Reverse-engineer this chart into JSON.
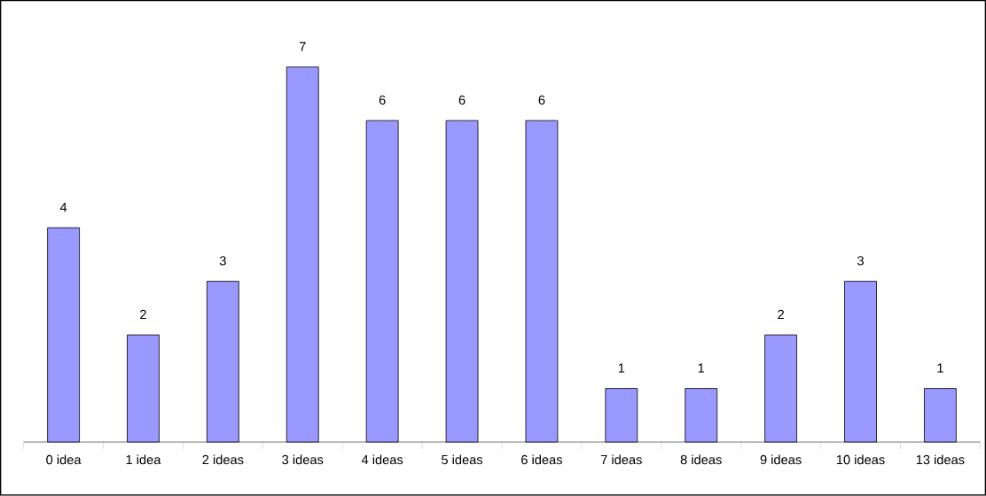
{
  "chart_data": {
    "type": "bar",
    "categories": [
      "0 idea",
      "1 idea",
      "2 ideas",
      "3 ideas",
      "4 ideas",
      "5 ideas",
      "6 ideas",
      "7 ideas",
      "8 ideas",
      "9 ideas",
      "10 ideas",
      "13 ideas"
    ],
    "values": [
      4,
      2,
      3,
      7,
      6,
      6,
      6,
      1,
      1,
      2,
      3,
      1
    ],
    "color": "#9999ff",
    "data_labels": true
  }
}
